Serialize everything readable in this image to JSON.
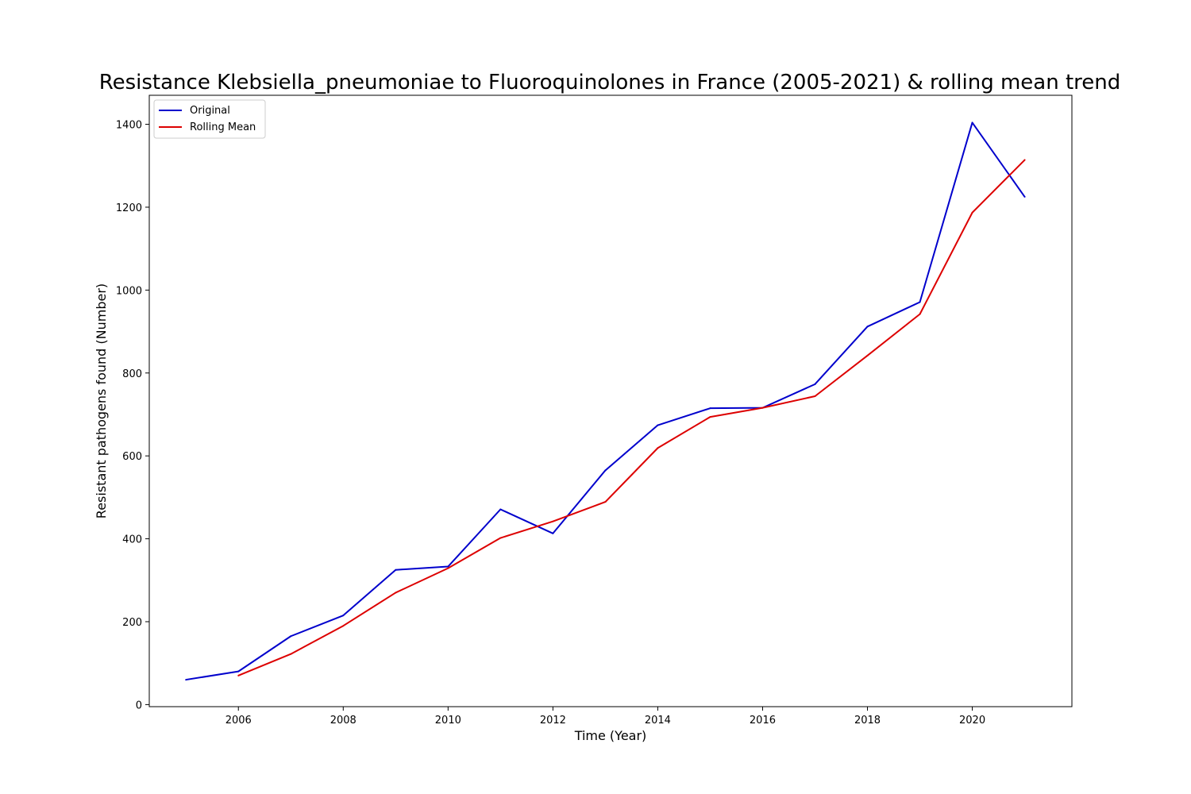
{
  "chart_data": {
    "type": "line",
    "title": "Resistance Klebsiella_pneumoniae to Fluoroquinolones in France (2005-2021) & rolling mean trend",
    "xlabel": "Time (Year)",
    "ylabel": "Resistant pathogens found (Number)",
    "xlim": [
      2004.3,
      2021.9
    ],
    "ylim": [
      -5,
      1470
    ],
    "xticks": [
      2006,
      2008,
      2010,
      2012,
      2014,
      2016,
      2018,
      2020
    ],
    "yticks": [
      0,
      200,
      400,
      600,
      800,
      1000,
      1200,
      1400
    ],
    "grid": false,
    "legend_position": "top-left",
    "series": [
      {
        "name": "Original",
        "color": "#0000cc",
        "x": [
          2005,
          2006,
          2007,
          2008,
          2009,
          2010,
          2011,
          2012,
          2013,
          2014,
          2015,
          2016,
          2017,
          2018,
          2019,
          2020,
          2021
        ],
        "values": [
          60,
          80,
          165,
          215,
          325,
          333,
          471,
          413,
          565,
          674,
          715,
          716,
          773,
          912,
          971,
          1404,
          1225
        ]
      },
      {
        "name": "Rolling Mean",
        "color": "#dd0000",
        "x": [
          2006,
          2007,
          2008,
          2009,
          2010,
          2011,
          2012,
          2013,
          2014,
          2015,
          2016,
          2017,
          2018,
          2019,
          2020,
          2021
        ],
        "values": [
          70,
          122,
          190,
          270,
          329,
          402,
          442,
          489,
          619,
          694,
          716,
          744,
          842,
          942,
          1187,
          1314
        ]
      }
    ]
  }
}
